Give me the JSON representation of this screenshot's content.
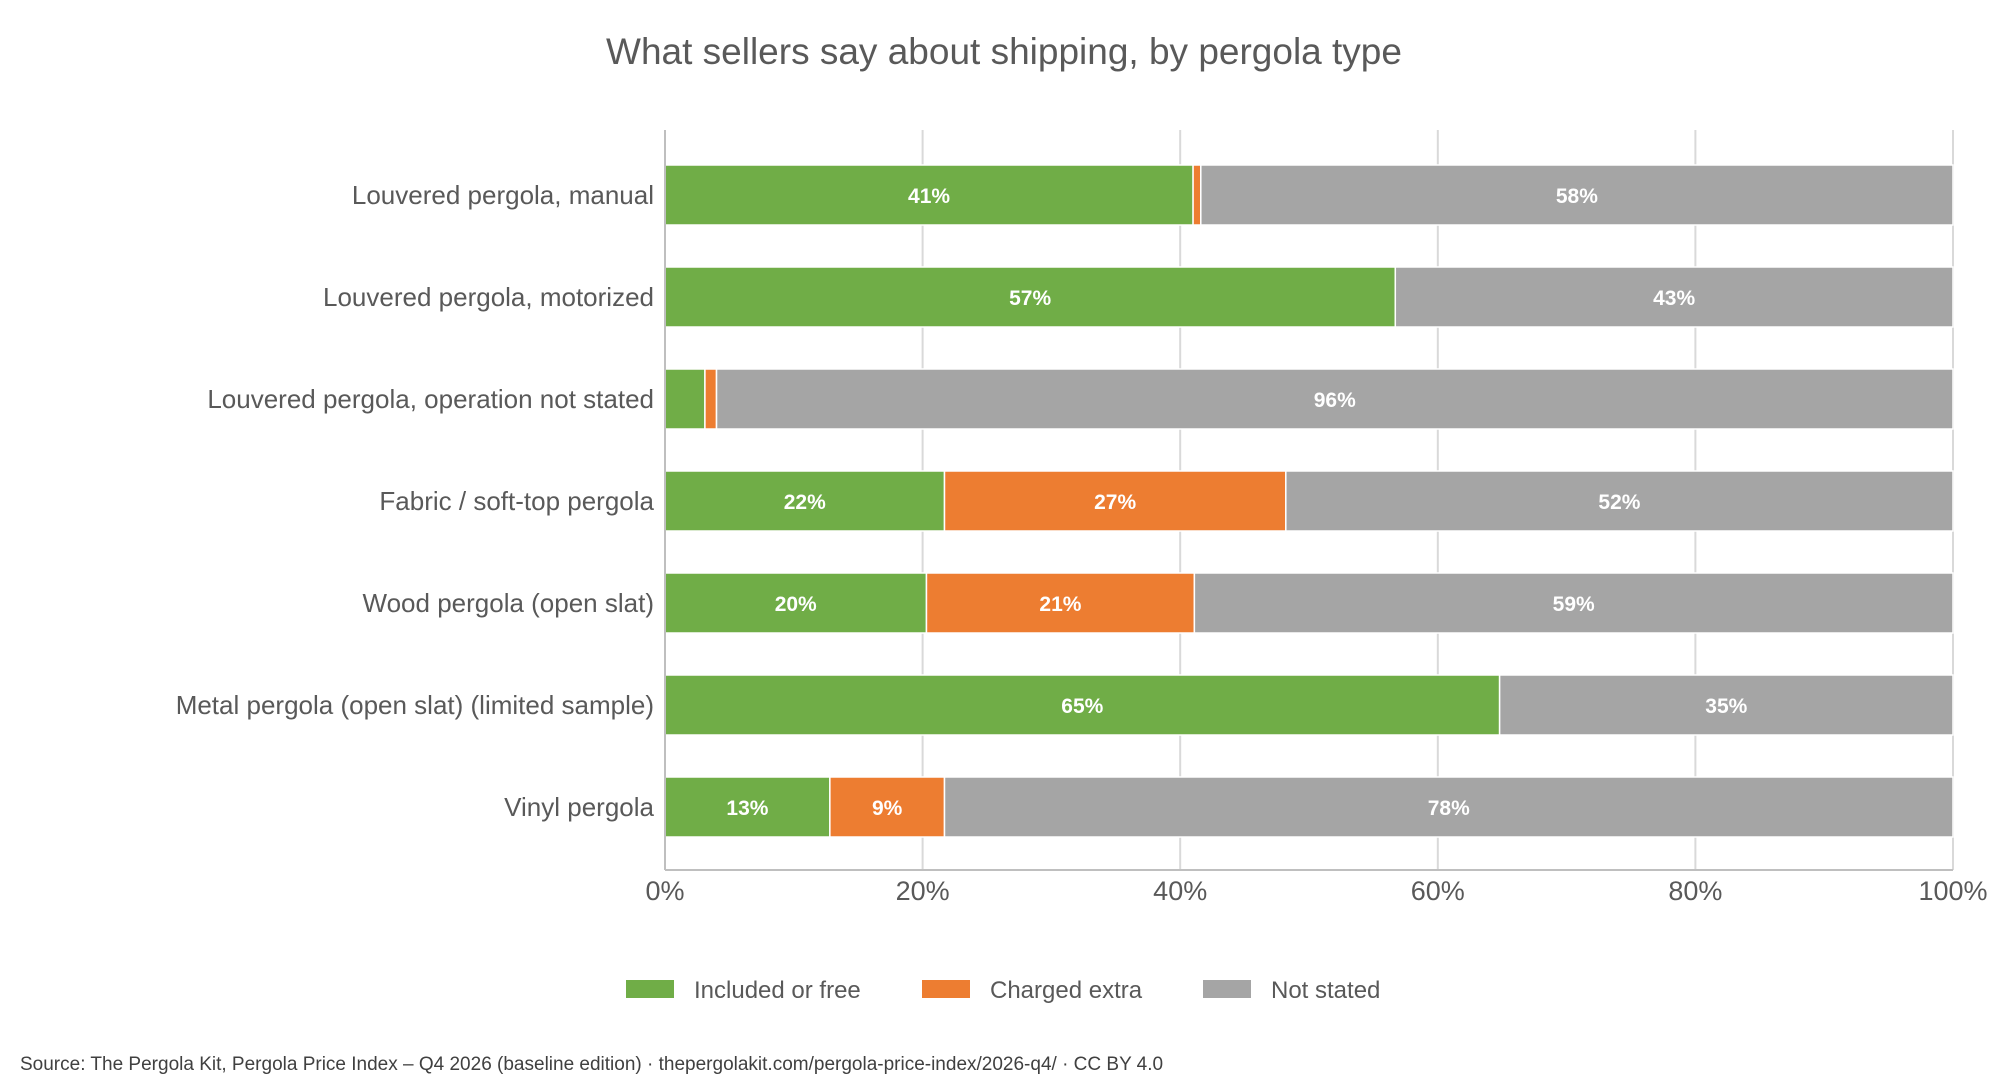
{
  "chart_data": {
    "type": "bar",
    "orientation": "horizontal",
    "stacked": true,
    "title": "What sellers say about shipping, by pergola type",
    "categories": [
      "Louvered pergola, manual",
      "Louvered pergola, motorized",
      "Louvered pergola, operation not stated",
      "Fabric / soft-top pergola",
      "Wood pergola (open slat)",
      "Metal pergola (open slat) (limited sample)",
      "Vinyl pergola"
    ],
    "series": [
      {
        "name": "Included or free",
        "color": "#70AD47",
        "values": [
          41,
          56.7,
          3.1,
          21.7,
          20.3,
          64.8,
          12.8
        ],
        "labels": [
          "41%",
          "57%",
          "",
          "22%",
          "20%",
          "65%",
          "13%"
        ]
      },
      {
        "name": "Charged extra",
        "color": "#ED7D31",
        "values": [
          0.6,
          0,
          0.9,
          26.5,
          20.8,
          0,
          8.9
        ],
        "labels": [
          "",
          "",
          "",
          "27%",
          "21%",
          "",
          "9%"
        ]
      },
      {
        "name": "Not stated",
        "color": "#A5A5A5",
        "values": [
          58.4,
          43.3,
          96.0,
          51.8,
          58.9,
          35.2,
          78.3
        ],
        "labels": [
          "58%",
          "43%",
          "96%",
          "52%",
          "59%",
          "35%",
          "78%"
        ]
      }
    ],
    "xlim": [
      0,
      100
    ],
    "x_ticks": [
      0,
      20,
      40,
      60,
      80,
      100
    ],
    "x_tick_labels": [
      "0%",
      "20%",
      "40%",
      "60%",
      "80%",
      "100%"
    ],
    "xlabel": "",
    "ylabel": "",
    "grid": "vertical",
    "legend_position": "bottom",
    "source": "Source: The Pergola Kit, Pergola Price Index – Q4 2026 (baseline edition) · thepergolakit.com/pergola-price-index/2026-q4/ · CC BY 4.0"
  }
}
